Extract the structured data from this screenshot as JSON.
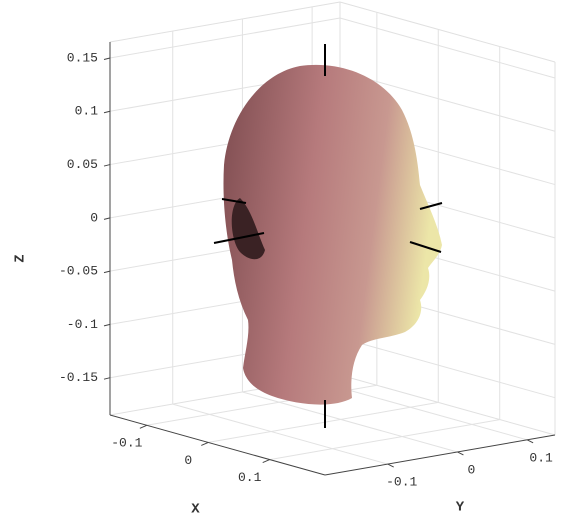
{
  "chart_data": {
    "type": "surface3d",
    "xlabel": "X",
    "ylabel": "Y",
    "zlabel": "Z",
    "xlim": [
      -0.16,
      0.19
    ],
    "ylim": [
      -0.19,
      0.14
    ],
    "zlim": [
      -0.185,
      0.165
    ],
    "xticks": [
      -0.1,
      0,
      0.1
    ],
    "yticks": [
      -0.1,
      0,
      0.1
    ],
    "zticks": [
      -0.15,
      -0.1,
      -0.05,
      0,
      0.05,
      0.1,
      0.15
    ],
    "grid": true
  }
}
